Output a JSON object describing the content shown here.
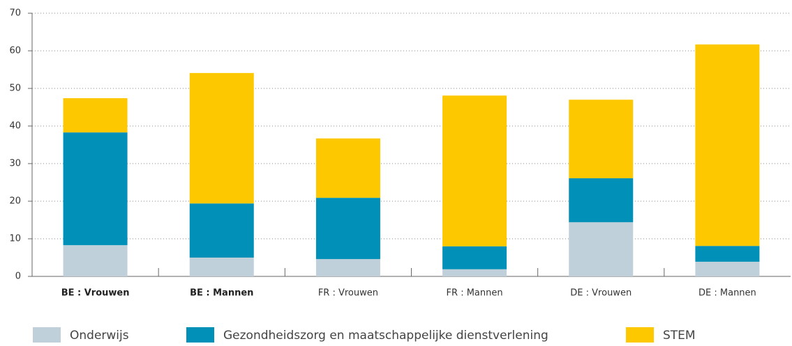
{
  "chart_data": {
    "type": "stacked_bar",
    "categories": [
      "BE : Vrouwen",
      "BE : Mannen",
      "FR : Vrouwen",
      "FR : Mannen",
      "DE : Vrouwen",
      "DE : Mannen"
    ],
    "series": [
      {
        "name": "Onderwijs",
        "color": "#c0d0da",
        "values": [
          8.3,
          5.0,
          4.6,
          1.9,
          14.4,
          3.9
        ]
      },
      {
        "name": "Gezondheidszorg en maatschappelijke dienstverlening",
        "color": "#0090b8",
        "values": [
          30.0,
          14.4,
          16.3,
          6.1,
          11.7,
          4.2
        ]
      },
      {
        "name": "STEM",
        "color": "#fdc800",
        "values": [
          9.1,
          34.7,
          15.8,
          40.1,
          20.9,
          53.6
        ]
      }
    ],
    "ylim": [
      0,
      70
    ],
    "yticks": [
      0,
      10,
      20,
      30,
      40,
      50,
      60,
      70
    ],
    "grid": true
  }
}
